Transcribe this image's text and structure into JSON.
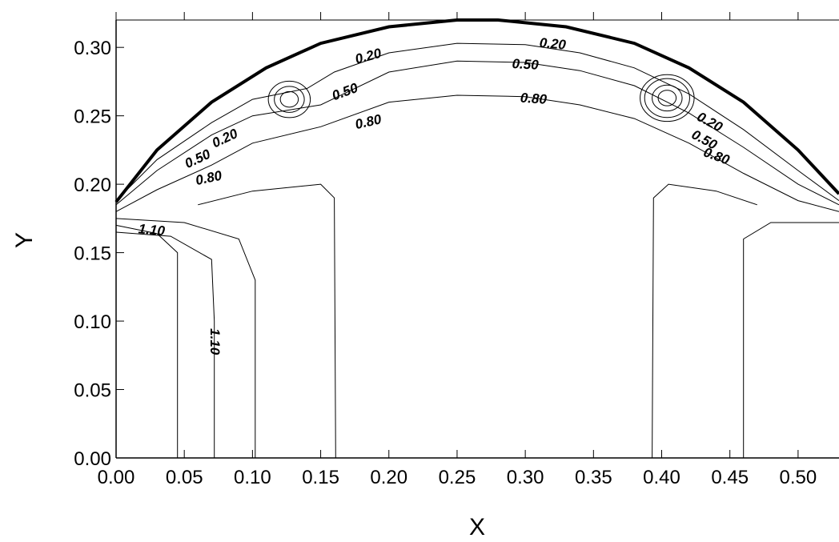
{
  "chart_data": {
    "type": "contour",
    "xlabel": "X",
    "ylabel": "Y",
    "xlim": [
      0.0,
      0.53
    ],
    "ylim": [
      0.0,
      0.32
    ],
    "x_ticks": [
      "0.00",
      "0.05",
      "0.10",
      "0.15",
      "0.20",
      "0.25",
      "0.30",
      "0.35",
      "0.40",
      "0.45",
      "0.50"
    ],
    "y_ticks": [
      "0.00",
      "0.05",
      "0.10",
      "0.15",
      "0.20",
      "0.25",
      "0.30"
    ],
    "grid": false,
    "boundary": [
      [
        0.0,
        0.187
      ],
      [
        0.03,
        0.225
      ],
      [
        0.07,
        0.26
      ],
      [
        0.11,
        0.285
      ],
      [
        0.15,
        0.303
      ],
      [
        0.2,
        0.315
      ],
      [
        0.25,
        0.32
      ],
      [
        0.28,
        0.32
      ],
      [
        0.33,
        0.315
      ],
      [
        0.38,
        0.303
      ],
      [
        0.42,
        0.285
      ],
      [
        0.46,
        0.26
      ],
      [
        0.5,
        0.225
      ],
      [
        0.53,
        0.193
      ]
    ],
    "contours": [
      {
        "level": "0.20",
        "points": [
          [
            0.0,
            0.188
          ],
          [
            0.03,
            0.218
          ],
          [
            0.07,
            0.245
          ],
          [
            0.1,
            0.262
          ],
          [
            0.14,
            0.27
          ],
          [
            0.16,
            0.282
          ],
          [
            0.2,
            0.296
          ],
          [
            0.25,
            0.303
          ],
          [
            0.3,
            0.302
          ],
          [
            0.34,
            0.296
          ],
          [
            0.38,
            0.285
          ],
          [
            0.42,
            0.266
          ],
          [
            0.46,
            0.24
          ],
          [
            0.5,
            0.21
          ],
          [
            0.53,
            0.188
          ]
        ]
      },
      {
        "level": "0.50",
        "points": [
          [
            0.0,
            0.185
          ],
          [
            0.03,
            0.21
          ],
          [
            0.07,
            0.236
          ],
          [
            0.1,
            0.25
          ],
          [
            0.15,
            0.258
          ],
          [
            0.2,
            0.282
          ],
          [
            0.25,
            0.29
          ],
          [
            0.3,
            0.289
          ],
          [
            0.34,
            0.283
          ],
          [
            0.38,
            0.272
          ],
          [
            0.42,
            0.252
          ],
          [
            0.46,
            0.227
          ],
          [
            0.5,
            0.2
          ],
          [
            0.53,
            0.185
          ]
        ]
      },
      {
        "level": "0.80",
        "points": [
          [
            0.0,
            0.18
          ],
          [
            0.03,
            0.196
          ],
          [
            0.07,
            0.214
          ],
          [
            0.1,
            0.23
          ],
          [
            0.15,
            0.242
          ],
          [
            0.2,
            0.26
          ],
          [
            0.25,
            0.265
          ],
          [
            0.3,
            0.264
          ],
          [
            0.34,
            0.258
          ],
          [
            0.38,
            0.248
          ],
          [
            0.42,
            0.23
          ],
          [
            0.46,
            0.208
          ],
          [
            0.5,
            0.188
          ],
          [
            0.53,
            0.18
          ]
        ]
      },
      {
        "level": "1.10",
        "points": [
          [
            0.0,
            0.17
          ],
          [
            0.03,
            0.164
          ],
          [
            0.045,
            0.15
          ],
          [
            0.045,
            0.0
          ]
        ]
      },
      {
        "level": "1.10",
        "points": [
          [
            0.0,
            0.165
          ],
          [
            0.04,
            0.162
          ],
          [
            0.07,
            0.145
          ],
          [
            0.072,
            0.1
          ],
          [
            0.072,
            0.0
          ]
        ]
      },
      {
        "level": "",
        "points": [
          [
            0.0,
            0.175
          ],
          [
            0.05,
            0.172
          ],
          [
            0.09,
            0.16
          ],
          [
            0.102,
            0.13
          ],
          [
            0.102,
            0.0
          ]
        ]
      },
      {
        "level": "",
        "points": [
          [
            0.06,
            0.185
          ],
          [
            0.1,
            0.195
          ],
          [
            0.15,
            0.2
          ],
          [
            0.16,
            0.19
          ],
          [
            0.161,
            0.0
          ]
        ]
      },
      {
        "level": "",
        "points": [
          [
            0.393,
            0.0
          ],
          [
            0.394,
            0.19
          ],
          [
            0.405,
            0.2
          ],
          [
            0.44,
            0.195
          ],
          [
            0.47,
            0.185
          ]
        ]
      },
      {
        "level": "",
        "points": [
          [
            0.46,
            0.0
          ],
          [
            0.46,
            0.16
          ],
          [
            0.48,
            0.172
          ],
          [
            0.53,
            0.172
          ]
        ]
      }
    ],
    "peaks": [
      {
        "x": 0.127,
        "y": 0.262,
        "radii": [
          0.006,
          0.01,
          0.014
        ]
      },
      {
        "x": 0.404,
        "y": 0.263,
        "radii": [
          0.006,
          0.01,
          0.015,
          0.018
        ]
      }
    ],
    "contour_labels": [
      {
        "text": "0.20",
        "x": 0.185,
        "y": 0.293,
        "angle": -15
      },
      {
        "text": "0.50",
        "x": 0.168,
        "y": 0.267,
        "angle": -20
      },
      {
        "text": "0.80",
        "x": 0.185,
        "y": 0.245,
        "angle": -13
      },
      {
        "text": "0.20",
        "x": 0.32,
        "y": 0.302,
        "angle": 5
      },
      {
        "text": "0.50",
        "x": 0.3,
        "y": 0.287,
        "angle": 3
      },
      {
        "text": "0.80",
        "x": 0.306,
        "y": 0.262,
        "angle": 4
      },
      {
        "text": "0.20",
        "x": 0.08,
        "y": 0.233,
        "angle": -25
      },
      {
        "text": "0.50",
        "x": 0.06,
        "y": 0.218,
        "angle": -25
      },
      {
        "text": "0.80",
        "x": 0.068,
        "y": 0.204,
        "angle": -12
      },
      {
        "text": "0.20",
        "x": 0.435,
        "y": 0.245,
        "angle": 28
      },
      {
        "text": "0.50",
        "x": 0.431,
        "y": 0.232,
        "angle": 28
      },
      {
        "text": "0.80",
        "x": 0.44,
        "y": 0.22,
        "angle": 20
      },
      {
        "text": "1.10",
        "x": 0.026,
        "y": 0.166,
        "angle": 5
      },
      {
        "text": "1.10",
        "x": 0.072,
        "y": 0.085,
        "angle": 90
      }
    ]
  }
}
